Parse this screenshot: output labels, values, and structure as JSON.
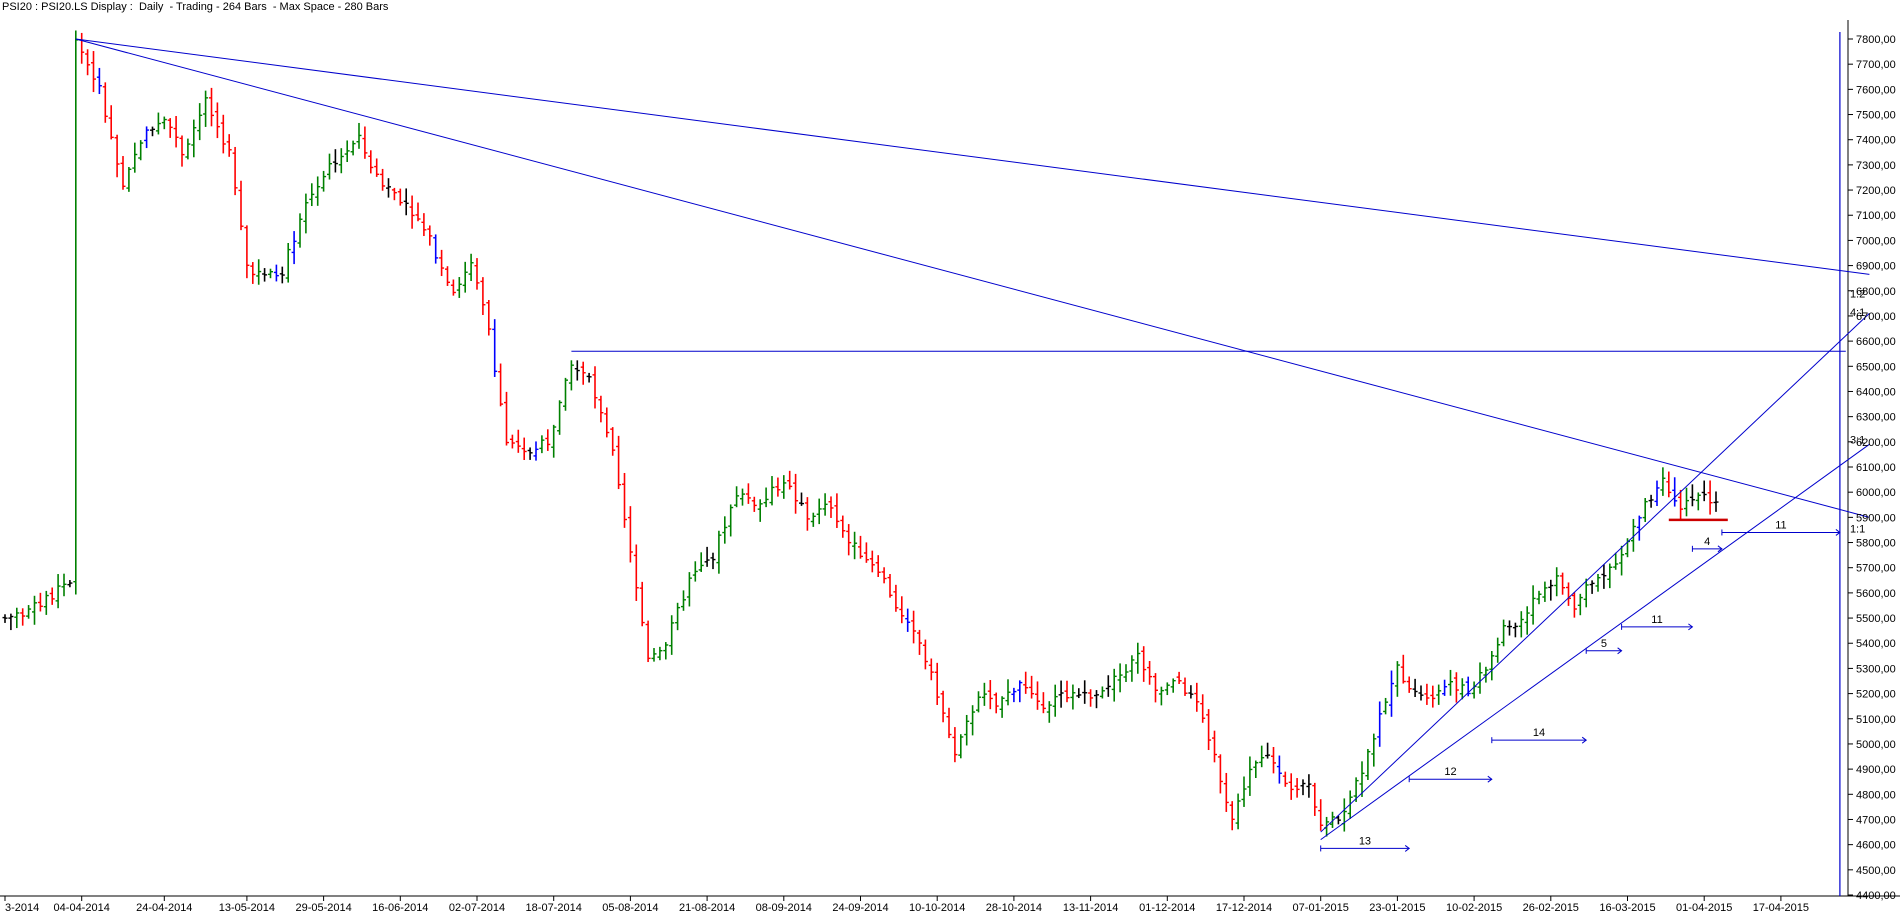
{
  "chart_data": {
    "type": "bar",
    "subtype": "ohlc",
    "title": "PSI20 : PSI20.LS Display :  Daily  - Trading - 264 Bars  - Max Space - 280 Bars",
    "xlabel": "",
    "ylabel": "",
    "ylim": [
      4400,
      7800
    ],
    "yticks": [
      "4400,00",
      "4500,00",
      "4600,00",
      "4700,00",
      "4800,00",
      "4900,00",
      "5000,00",
      "5100,00",
      "5200,00",
      "5300,00",
      "5400,00",
      "5500,00",
      "5600,00",
      "5700,00",
      "5800,00",
      "5900,00",
      "6000,00",
      "6100,00",
      "6200,00",
      "6300,00",
      "6400,00",
      "6500,00",
      "6600,00",
      "6700,00",
      "6800,00",
      "6900,00",
      "7000,00",
      "7100,00",
      "7200,00",
      "7300,00",
      "7400,00",
      "7500,00",
      "7600,00",
      "7700,00",
      "7800,00"
    ],
    "xlim": [
      0,
      280
    ],
    "xticks": [
      {
        "i": 0,
        "label": "3-2014"
      },
      {
        "i": 13,
        "label": "04-04-2014"
      },
      {
        "i": 27,
        "label": "24-04-2014"
      },
      {
        "i": 41,
        "label": "13-05-2014"
      },
      {
        "i": 54,
        "label": "29-05-2014"
      },
      {
        "i": 67,
        "label": "16-06-2014"
      },
      {
        "i": 80,
        "label": "02-07-2014"
      },
      {
        "i": 93,
        "label": "18-07-2014"
      },
      {
        "i": 106,
        "label": "05-08-2014"
      },
      {
        "i": 119,
        "label": "21-08-2014"
      },
      {
        "i": 132,
        "label": "08-09-2014"
      },
      {
        "i": 145,
        "label": "24-09-2014"
      },
      {
        "i": 158,
        "label": "10-10-2014"
      },
      {
        "i": 171,
        "label": "28-10-2014"
      },
      {
        "i": 184,
        "label": "13-11-2014"
      },
      {
        "i": 197,
        "label": "01-12-2014"
      },
      {
        "i": 210,
        "label": "17-12-2014"
      },
      {
        "i": 223,
        "label": "07-01-2015"
      },
      {
        "i": 236,
        "label": "23-01-2015"
      },
      {
        "i": 249,
        "label": "10-02-2015"
      },
      {
        "i": 262,
        "label": "26-02-2015"
      },
      {
        "i": 275,
        "label": "16-03-2015"
      },
      {
        "i": 288,
        "label": "01-04-2015"
      },
      {
        "i": 301,
        "label": "17-04-2015"
      }
    ],
    "anchors": [
      [
        0,
        5500
      ],
      [
        6,
        5550
      ],
      [
        11,
        5650
      ],
      [
        12,
        7800
      ],
      [
        16,
        7600
      ],
      [
        20,
        7200
      ],
      [
        23,
        7400
      ],
      [
        27,
        7500
      ],
      [
        30,
        7350
      ],
      [
        34,
        7550
      ],
      [
        38,
        7350
      ],
      [
        41,
        6900
      ],
      [
        44,
        6850
      ],
      [
        47,
        6880
      ],
      [
        51,
        7150
      ],
      [
        55,
        7300
      ],
      [
        60,
        7400
      ],
      [
        63,
        7250
      ],
      [
        68,
        7150
      ],
      [
        72,
        7000
      ],
      [
        76,
        6800
      ],
      [
        79,
        6900
      ],
      [
        82,
        6650
      ],
      [
        85,
        6200
      ],
      [
        88,
        6150
      ],
      [
        92,
        6200
      ],
      [
        96,
        6500
      ],
      [
        99,
        6450
      ],
      [
        103,
        6150
      ],
      [
        106,
        5750
      ],
      [
        109,
        5350
      ],
      [
        112,
        5400
      ],
      [
        116,
        5650
      ],
      [
        120,
        5750
      ],
      [
        124,
        6000
      ],
      [
        128,
        5950
      ],
      [
        132,
        6050
      ],
      [
        136,
        5900
      ],
      [
        140,
        5950
      ],
      [
        143,
        5800
      ],
      [
        148,
        5700
      ],
      [
        152,
        5500
      ],
      [
        155,
        5400
      ],
      [
        158,
        5200
      ],
      [
        161,
        4950
      ],
      [
        165,
        5200
      ],
      [
        168,
        5150
      ],
      [
        172,
        5250
      ],
      [
        175,
        5150
      ],
      [
        180,
        5200
      ],
      [
        184,
        5200
      ],
      [
        188,
        5250
      ],
      [
        192,
        5350
      ],
      [
        195,
        5200
      ],
      [
        199,
        5250
      ],
      [
        202,
        5150
      ],
      [
        205,
        4950
      ],
      [
        208,
        4700
      ],
      [
        211,
        4900
      ],
      [
        214,
        4950
      ],
      [
        218,
        4800
      ],
      [
        221,
        4850
      ],
      [
        223,
        4680
      ],
      [
        226,
        4700
      ],
      [
        230,
        4900
      ],
      [
        233,
        5100
      ],
      [
        236,
        5300
      ],
      [
        239,
        5200
      ],
      [
        242,
        5200
      ],
      [
        245,
        5250
      ],
      [
        248,
        5200
      ],
      [
        251,
        5300
      ],
      [
        254,
        5450
      ],
      [
        257,
        5500
      ],
      [
        260,
        5600
      ],
      [
        263,
        5650
      ],
      [
        266,
        5550
      ],
      [
        269,
        5650
      ],
      [
        272,
        5700
      ],
      [
        275,
        5800
      ],
      [
        278,
        5950
      ],
      [
        281,
        6050
      ],
      [
        284,
        5950
      ],
      [
        287,
        6000
      ],
      [
        290,
        5960
      ]
    ],
    "bar_colors": {
      "up": "#008000",
      "down": "#ff0000",
      "doji": "#000000",
      "extreme": "#0000ff"
    },
    "trendlines": [
      {
        "p1": [
          12,
          7800
        ],
        "p2": [
          316,
          6865
        ],
        "color": "#0000cc"
      },
      {
        "p1": [
          12,
          7800
        ],
        "p2": [
          316,
          5900
        ],
        "color": "#0000cc"
      },
      {
        "p1": [
          96,
          6560
        ],
        "p2": [
          312,
          6560
        ],
        "color": "#0000cc"
      },
      {
        "p1": [
          223,
          4650
        ],
        "p2": [
          316,
          6710
        ],
        "color": "#0000cc"
      },
      {
        "p1": [
          223,
          4620
        ],
        "p2": [
          316,
          6190
        ],
        "color": "#0000cc"
      }
    ],
    "support_line": {
      "x1": 282,
      "x2": 292,
      "y": 5890,
      "color": "#cc0000"
    },
    "vertical_line": {
      "x": 311,
      "color": "#0000cc"
    },
    "ratio_labels": [
      {
        "text": "1:2",
        "x": 314,
        "y": 6790
      },
      {
        "text": "4:1",
        "x": 314,
        "y": 6715
      },
      {
        "text": "3:1",
        "x": 314,
        "y": 6210
      },
      {
        "text": "1:1",
        "x": 314,
        "y": 5855
      }
    ],
    "count_arrows": [
      {
        "label": "13",
        "x1": 223,
        "x2": 238,
        "y": 4585
      },
      {
        "label": "12",
        "x1": 238,
        "x2": 252,
        "y": 4860
      },
      {
        "label": "14",
        "x1": 252,
        "x2": 268,
        "y": 5015
      },
      {
        "label": "5",
        "x1": 268,
        "x2": 274,
        "y": 5370
      },
      {
        "label": "11",
        "x1": 274,
        "x2": 286,
        "y": 5465
      },
      {
        "label": "4",
        "x1": 286,
        "x2": 291,
        "y": 5775
      },
      {
        "label": "11",
        "x1": 291,
        "x2": 311,
        "y": 5840
      }
    ]
  }
}
